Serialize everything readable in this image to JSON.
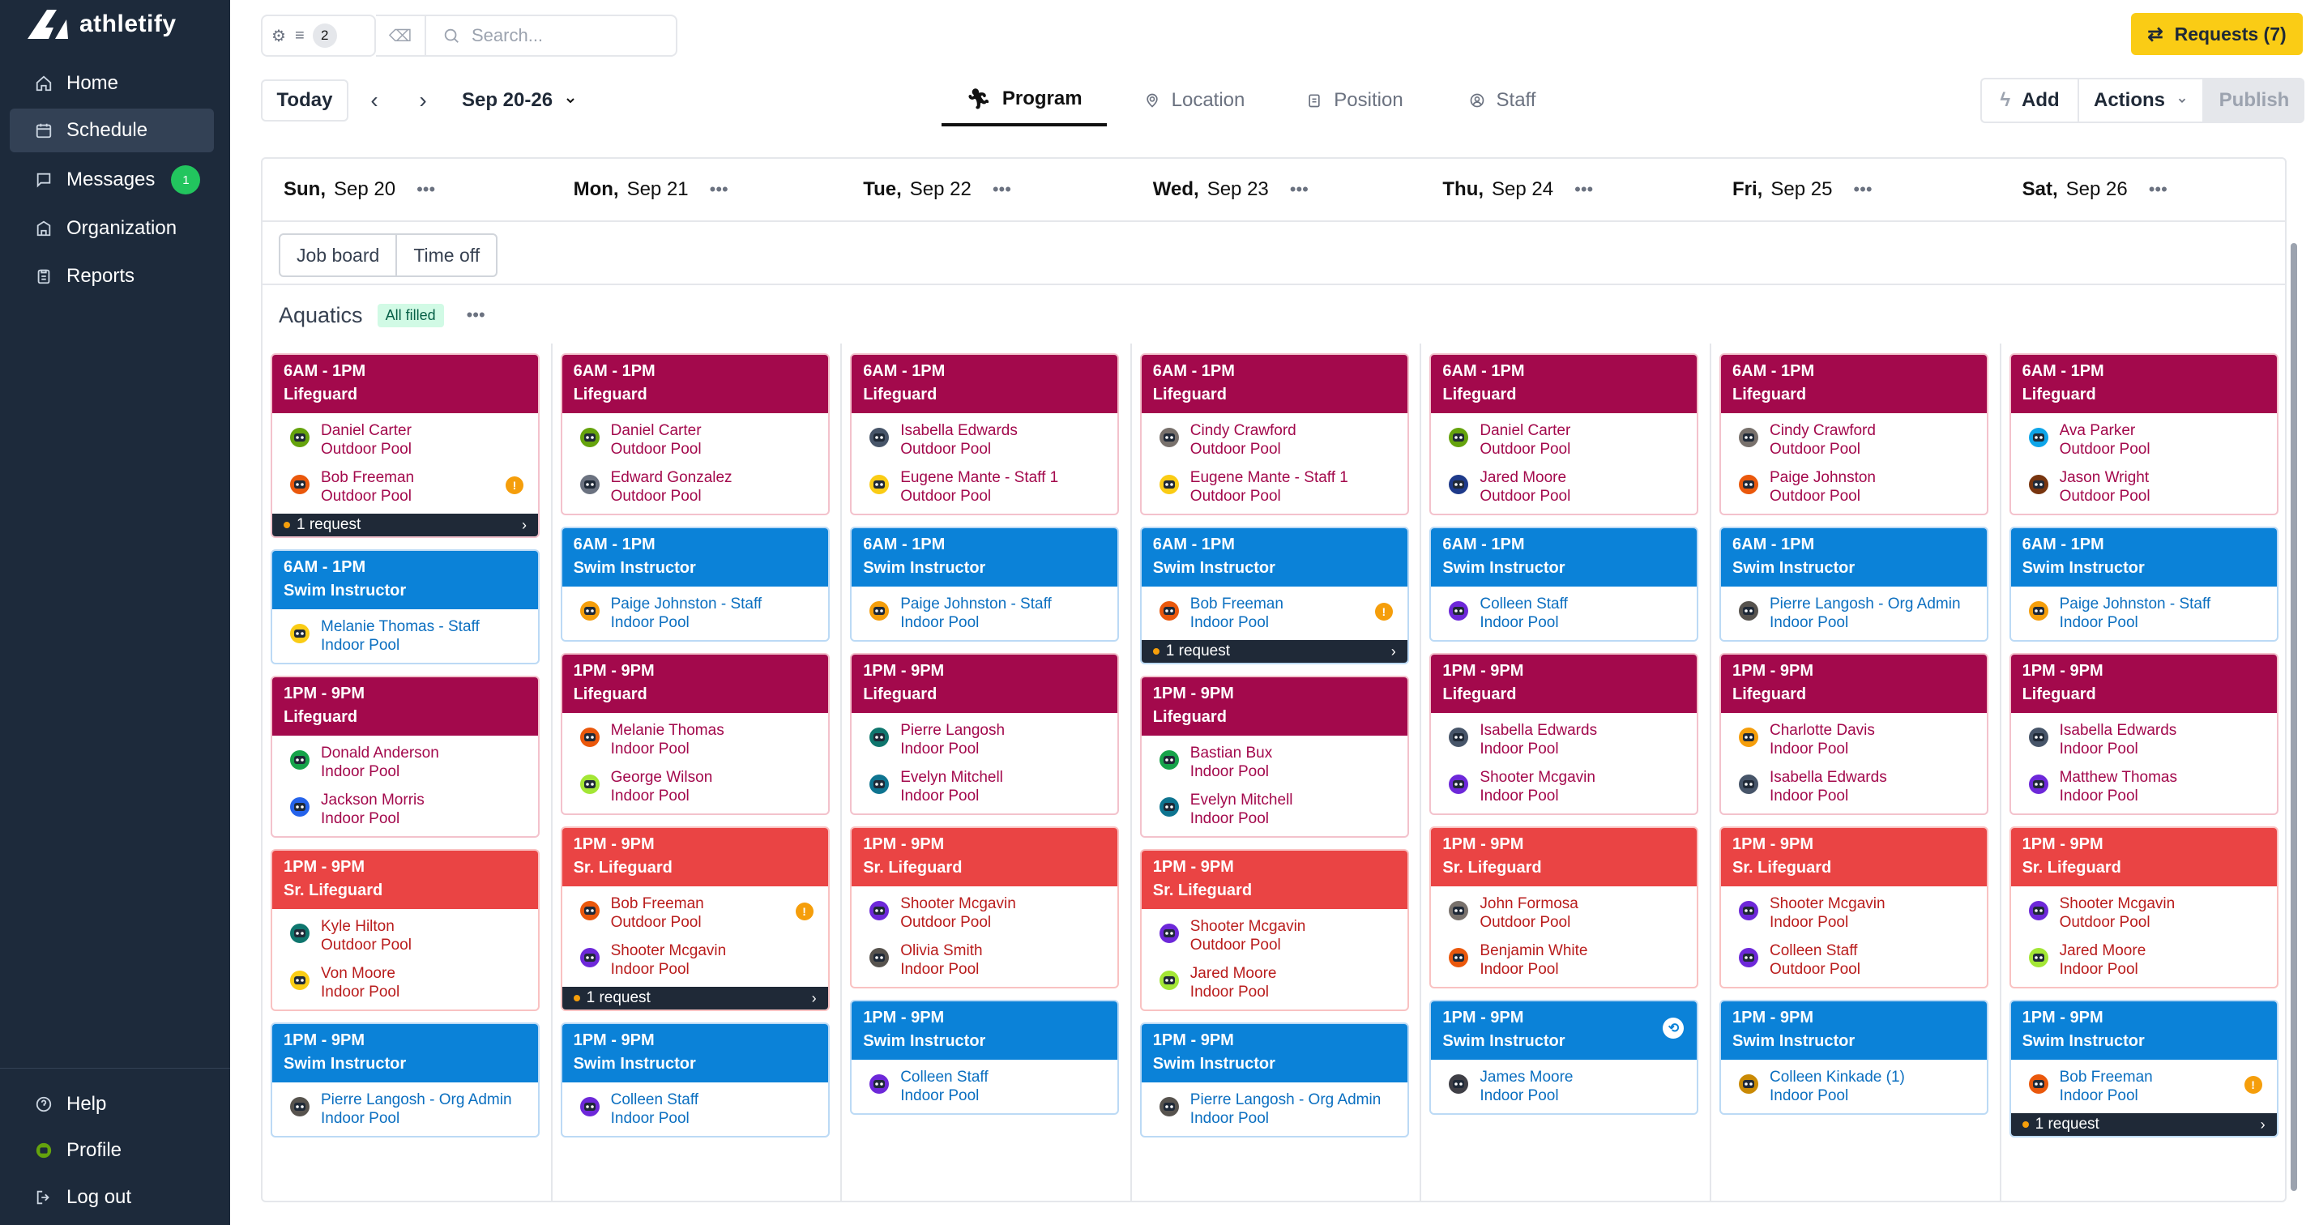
{
  "brand": {
    "name": "athletify"
  },
  "nav": [
    {
      "label": "Home",
      "icon": "home-icon"
    },
    {
      "label": "Schedule",
      "icon": "calendar-icon"
    },
    {
      "label": "Messages",
      "icon": "chat-icon",
      "badge": "1"
    },
    {
      "label": "Organization",
      "icon": "building-icon"
    },
    {
      "label": "Reports",
      "icon": "clipboard-icon"
    }
  ],
  "nav_bottom": [
    {
      "label": "Help",
      "icon": "help-icon"
    },
    {
      "label": "Profile",
      "icon": "profile-icon"
    },
    {
      "label": "Log out",
      "icon": "logout-icon"
    }
  ],
  "toolbar": {
    "filter_count": "2",
    "search_placeholder": "Search...",
    "requests_label": "Requests (7)",
    "today_label": "Today",
    "date_range": "Sep 20-26",
    "add_label": "Add",
    "actions_label": "Actions",
    "publish_label": "Publish"
  },
  "view_tabs": [
    {
      "label": "Program",
      "icon": "runner-icon"
    },
    {
      "label": "Location",
      "icon": "pin-icon"
    },
    {
      "label": "Position",
      "icon": "badge-icon"
    },
    {
      "label": "Staff",
      "icon": "person-circle-icon"
    }
  ],
  "days": [
    {
      "dow": "Sun,",
      "date": "Sep 20"
    },
    {
      "dow": "Mon,",
      "date": "Sep 21"
    },
    {
      "dow": "Tue,",
      "date": "Sep 22"
    },
    {
      "dow": "Wed,",
      "date": "Sep 23"
    },
    {
      "dow": "Thu,",
      "date": "Sep 24"
    },
    {
      "dow": "Fri,",
      "date": "Sep 25"
    },
    {
      "dow": "Sat,",
      "date": "Sep 26"
    }
  ],
  "filters": {
    "job_board": "Job board",
    "time_off": "Time off"
  },
  "section": {
    "title": "Aquatics",
    "badge": "All filled"
  },
  "colors": {
    "lifeguard": "#a3094c",
    "swim_instructor": "#0b82d8",
    "sr_lifeguard": "#ea4444",
    "requests_button": "#facc15",
    "sidebar": "#1d2a3b"
  },
  "columns": [
    {
      "shifts": [
        {
          "color": "crimson",
          "time": "6AM - 1PM",
          "role": "Lifeguard",
          "assignments": [
            {
              "name": "Daniel Carter",
              "location": "Outdoor Pool",
              "avatar": "#65a30d"
            },
            {
              "name": "Bob Freeman",
              "location": "Outdoor Pool",
              "avatar": "#ea580c",
              "warning": true
            }
          ],
          "request": "1 request"
        },
        {
          "color": "blue",
          "time": "6AM - 1PM",
          "role": "Swim Instructor",
          "assignments": [
            {
              "name": "Melanie Thomas - Staff",
              "location": "Indoor Pool",
              "avatar": "#facc15"
            }
          ]
        },
        {
          "color": "crimson",
          "time": "1PM - 9PM",
          "role": "Lifeguard",
          "assignments": [
            {
              "name": "Donald Anderson",
              "location": "Indoor Pool",
              "avatar": "#16a34a"
            },
            {
              "name": "Jackson Morris",
              "location": "Indoor Pool",
              "avatar": "#2563eb"
            }
          ]
        },
        {
          "color": "orange",
          "time": "1PM - 9PM",
          "role": "Sr. Lifeguard",
          "assignments": [
            {
              "name": "Kyle Hilton",
              "location": "Outdoor Pool",
              "avatar": "#0f766e"
            },
            {
              "name": "Von Moore",
              "location": "Indoor Pool",
              "avatar": "#facc15"
            }
          ]
        },
        {
          "color": "blue",
          "time": "1PM - 9PM",
          "role": "Swim Instructor",
          "assignments": [
            {
              "name": "Pierre Langosh - Org Admin",
              "location": "Indoor Pool",
              "avatar": "#57534e"
            }
          ]
        }
      ]
    },
    {
      "shifts": [
        {
          "color": "crimson",
          "time": "6AM - 1PM",
          "role": "Lifeguard",
          "assignments": [
            {
              "name": "Daniel Carter",
              "location": "Outdoor Pool",
              "avatar": "#65a30d"
            },
            {
              "name": "Edward Gonzalez",
              "location": "Outdoor Pool",
              "avatar": "#6b7280"
            }
          ]
        },
        {
          "color": "blue",
          "time": "6AM - 1PM",
          "role": "Swim Instructor",
          "assignments": [
            {
              "name": "Paige Johnston - Staff",
              "location": "Indoor Pool",
              "avatar": "#f59e0b"
            }
          ]
        },
        {
          "color": "crimson",
          "time": "1PM - 9PM",
          "role": "Lifeguard",
          "assignments": [
            {
              "name": "Melanie Thomas",
              "location": "Indoor Pool",
              "avatar": "#ea580c"
            },
            {
              "name": "George Wilson",
              "location": "Indoor Pool",
              "avatar": "#a3e635"
            }
          ]
        },
        {
          "color": "orange",
          "time": "1PM - 9PM",
          "role": "Sr. Lifeguard",
          "assignments": [
            {
              "name": "Bob Freeman",
              "location": "Outdoor Pool",
              "avatar": "#ea580c",
              "warning": true
            },
            {
              "name": "Shooter Mcgavin",
              "location": "Indoor Pool",
              "avatar": "#6d28d9"
            }
          ],
          "request": "1 request"
        },
        {
          "color": "blue",
          "time": "1PM - 9PM",
          "role": "Swim Instructor",
          "assignments": [
            {
              "name": "Colleen Staff",
              "location": "Indoor Pool",
              "avatar": "#6d28d9"
            }
          ]
        }
      ]
    },
    {
      "shifts": [
        {
          "color": "crimson",
          "time": "6AM - 1PM",
          "role": "Lifeguard",
          "assignments": [
            {
              "name": "Isabella Edwards",
              "location": "Outdoor Pool",
              "avatar": "#475569"
            },
            {
              "name": "Eugene Mante - Staff 1",
              "location": "Outdoor Pool",
              "avatar": "#facc15"
            }
          ]
        },
        {
          "color": "blue",
          "time": "6AM - 1PM",
          "role": "Swim Instructor",
          "assignments": [
            {
              "name": "Paige Johnston - Staff",
              "location": "Indoor Pool",
              "avatar": "#f59e0b"
            }
          ]
        },
        {
          "color": "crimson",
          "time": "1PM - 9PM",
          "role": "Lifeguard",
          "assignments": [
            {
              "name": "Pierre Langosh",
              "location": "Indoor Pool",
              "avatar": "#0f766e"
            },
            {
              "name": "Evelyn Mitchell",
              "location": "Indoor Pool",
              "avatar": "#0e7490"
            }
          ]
        },
        {
          "color": "orange",
          "time": "1PM - 9PM",
          "role": "Sr. Lifeguard",
          "assignments": [
            {
              "name": "Shooter Mcgavin",
              "location": "Outdoor Pool",
              "avatar": "#6d28d9"
            },
            {
              "name": "Olivia Smith",
              "location": "Indoor Pool",
              "avatar": "#57534e"
            }
          ]
        },
        {
          "color": "blue",
          "time": "1PM - 9PM",
          "role": "Swim Instructor",
          "assignments": [
            {
              "name": "Colleen Staff",
              "location": "Indoor Pool",
              "avatar": "#6d28d9"
            }
          ]
        }
      ]
    },
    {
      "shifts": [
        {
          "color": "crimson",
          "time": "6AM - 1PM",
          "role": "Lifeguard",
          "assignments": [
            {
              "name": "Cindy Crawford",
              "location": "Outdoor Pool",
              "avatar": "#78716c"
            },
            {
              "name": "Eugene Mante - Staff 1",
              "location": "Outdoor Pool",
              "avatar": "#facc15"
            }
          ]
        },
        {
          "color": "blue",
          "time": "6AM - 1PM",
          "role": "Swim Instructor",
          "assignments": [
            {
              "name": "Bob Freeman",
              "location": "Indoor Pool",
              "avatar": "#ea580c",
              "warning": true
            }
          ],
          "request": "1 request"
        },
        {
          "color": "crimson",
          "time": "1PM - 9PM",
          "role": "Lifeguard",
          "assignments": [
            {
              "name": "Bastian Bux",
              "location": "Indoor Pool",
              "avatar": "#16a34a"
            },
            {
              "name": "Evelyn Mitchell",
              "location": "Indoor Pool",
              "avatar": "#0e7490"
            }
          ]
        },
        {
          "color": "orange",
          "time": "1PM - 9PM",
          "role": "Sr. Lifeguard",
          "assignments": [
            {
              "name": "Shooter Mcgavin",
              "location": "Outdoor Pool",
              "avatar": "#6d28d9"
            },
            {
              "name": "Jared Moore",
              "location": "Indoor Pool",
              "avatar": "#a3e635"
            }
          ]
        },
        {
          "color": "blue",
          "time": "1PM - 9PM",
          "role": "Swim Instructor",
          "assignments": [
            {
              "name": "Pierre Langosh - Org Admin",
              "location": "Indoor Pool",
              "avatar": "#57534e"
            }
          ]
        }
      ]
    },
    {
      "shifts": [
        {
          "color": "crimson",
          "time": "6AM - 1PM",
          "role": "Lifeguard",
          "assignments": [
            {
              "name": "Daniel Carter",
              "location": "Outdoor Pool",
              "avatar": "#65a30d"
            },
            {
              "name": "Jared Moore",
              "location": "Outdoor Pool",
              "avatar": "#1e3a8a"
            }
          ]
        },
        {
          "color": "blue",
          "time": "6AM - 1PM",
          "role": "Swim Instructor",
          "assignments": [
            {
              "name": "Colleen Staff",
              "location": "Indoor Pool",
              "avatar": "#6d28d9"
            }
          ]
        },
        {
          "color": "crimson",
          "time": "1PM - 9PM",
          "role": "Lifeguard",
          "assignments": [
            {
              "name": "Isabella Edwards",
              "location": "Indoor Pool",
              "avatar": "#475569"
            },
            {
              "name": "Shooter Mcgavin",
              "location": "Indoor Pool",
              "avatar": "#6d28d9"
            }
          ]
        },
        {
          "color": "orange",
          "time": "1PM - 9PM",
          "role": "Sr. Lifeguard",
          "assignments": [
            {
              "name": "John Formosa",
              "location": "Outdoor Pool",
              "avatar": "#78716c"
            },
            {
              "name": "Benjamin White",
              "location": "Indoor Pool",
              "avatar": "#ea580c"
            }
          ]
        },
        {
          "color": "blue",
          "time": "1PM - 9PM",
          "role": "Swim Instructor",
          "hdr_icon": true,
          "assignments": [
            {
              "name": "James Moore",
              "location": "Indoor Pool",
              "avatar": "#3f3f46"
            }
          ]
        }
      ]
    },
    {
      "shifts": [
        {
          "color": "crimson",
          "time": "6AM - 1PM",
          "role": "Lifeguard",
          "assignments": [
            {
              "name": "Cindy Crawford",
              "location": "Outdoor Pool",
              "avatar": "#78716c"
            },
            {
              "name": "Paige Johnston",
              "location": "Outdoor Pool",
              "avatar": "#ea580c"
            }
          ]
        },
        {
          "color": "blue",
          "time": "6AM - 1PM",
          "role": "Swim Instructor",
          "assignments": [
            {
              "name": "Pierre Langosh - Org Admin",
              "location": "Indoor Pool",
              "avatar": "#57534e"
            }
          ]
        },
        {
          "color": "crimson",
          "time": "1PM - 9PM",
          "role": "Lifeguard",
          "assignments": [
            {
              "name": "Charlotte Davis",
              "location": "Indoor Pool",
              "avatar": "#f59e0b"
            },
            {
              "name": "Isabella Edwards",
              "location": "Indoor Pool",
              "avatar": "#475569"
            }
          ]
        },
        {
          "color": "orange",
          "time": "1PM - 9PM",
          "role": "Sr. Lifeguard",
          "assignments": [
            {
              "name": "Shooter Mcgavin",
              "location": "Indoor Pool",
              "avatar": "#6d28d9"
            },
            {
              "name": "Colleen Staff",
              "location": "Outdoor Pool",
              "avatar": "#6d28d9"
            }
          ]
        },
        {
          "color": "blue",
          "time": "1PM - 9PM",
          "role": "Swim Instructor",
          "assignments": [
            {
              "name": "Colleen Kinkade (1)",
              "location": "Indoor Pool",
              "avatar": "#ca8a04"
            }
          ]
        }
      ]
    },
    {
      "shifts": [
        {
          "color": "crimson",
          "time": "6AM - 1PM",
          "role": "Lifeguard",
          "assignments": [
            {
              "name": "Ava Parker",
              "location": "Outdoor Pool",
              "avatar": "#0ea5e9"
            },
            {
              "name": "Jason Wright",
              "location": "Outdoor Pool",
              "avatar": "#78350f"
            }
          ]
        },
        {
          "color": "blue",
          "time": "6AM - 1PM",
          "role": "Swim Instructor",
          "assignments": [
            {
              "name": "Paige Johnston - Staff",
              "location": "Indoor Pool",
              "avatar": "#f59e0b"
            }
          ]
        },
        {
          "color": "crimson",
          "time": "1PM - 9PM",
          "role": "Lifeguard",
          "assignments": [
            {
              "name": "Isabella Edwards",
              "location": "Indoor Pool",
              "avatar": "#475569"
            },
            {
              "name": "Matthew Thomas",
              "location": "Indoor Pool",
              "avatar": "#6d28d9"
            }
          ]
        },
        {
          "color": "orange",
          "time": "1PM - 9PM",
          "role": "Sr. Lifeguard",
          "assignments": [
            {
              "name": "Shooter Mcgavin",
              "location": "Outdoor Pool",
              "avatar": "#6d28d9"
            },
            {
              "name": "Jared Moore",
              "location": "Indoor Pool",
              "avatar": "#a3e635"
            }
          ]
        },
        {
          "color": "blue",
          "time": "1PM - 9PM",
          "role": "Swim Instructor",
          "assignments": [
            {
              "name": "Bob Freeman",
              "location": "Indoor Pool",
              "avatar": "#ea580c",
              "warning": true
            }
          ],
          "request": "1 request"
        }
      ]
    }
  ]
}
